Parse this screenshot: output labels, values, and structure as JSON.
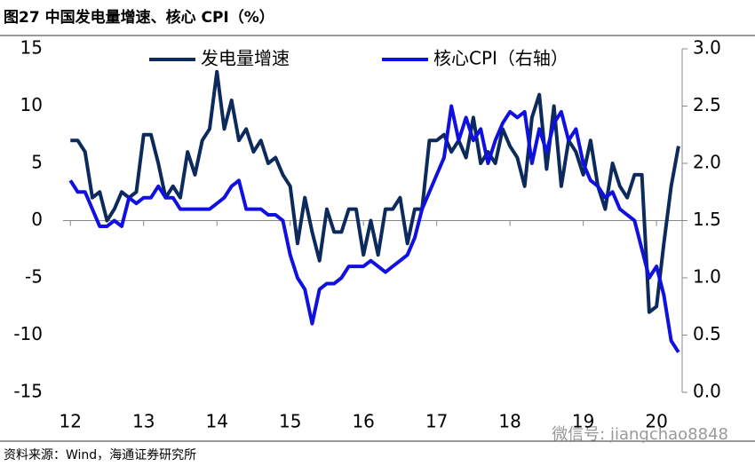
{
  "chart_data": {
    "type": "line",
    "title": "图27 中国发电量增速、核心 CPI（%）",
    "source": "资料来源：Wind，海通证券研究所",
    "watermark": "微信号: jiangchao8848",
    "x": [
      12.0,
      12.1,
      12.2,
      12.3,
      12.4,
      12.5,
      12.6,
      12.7,
      12.8,
      12.9,
      13.0,
      13.1,
      13.2,
      13.3,
      13.4,
      13.5,
      13.6,
      13.7,
      13.8,
      13.9,
      14.0,
      14.1,
      14.2,
      14.3,
      14.4,
      14.5,
      14.6,
      14.7,
      14.8,
      14.9,
      15.0,
      15.1,
      15.2,
      15.3,
      15.4,
      15.5,
      15.6,
      15.7,
      15.8,
      15.9,
      16.0,
      16.1,
      16.2,
      16.3,
      16.4,
      16.5,
      16.6,
      16.7,
      16.8,
      16.9,
      17.0,
      17.1,
      17.2,
      17.3,
      17.4,
      17.5,
      17.6,
      17.7,
      17.8,
      17.9,
      18.0,
      18.1,
      18.2,
      18.3,
      18.4,
      18.5,
      18.6,
      18.7,
      18.8,
      18.9,
      19.0,
      19.1,
      19.2,
      19.3,
      19.4,
      19.5,
      19.6,
      19.7,
      19.8,
      19.9,
      20.0,
      20.1,
      20.2,
      20.3
    ],
    "series": [
      {
        "name": "发电量增速",
        "color": "#0c2a5c",
        "values": [
          7,
          7,
          6,
          2,
          2.5,
          0,
          1,
          2.5,
          2,
          2.5,
          7.5,
          7.5,
          5,
          2,
          3,
          2,
          6,
          4,
          7,
          8,
          13,
          8,
          10.5,
          7,
          8,
          6,
          7,
          5,
          5.5,
          4,
          3,
          -2,
          2,
          -1,
          -3.5,
          1,
          -1,
          -1,
          1,
          1,
          -3,
          0,
          -3,
          1,
          1,
          2,
          -2,
          1,
          1,
          7,
          7,
          7.5,
          6,
          7,
          5.5,
          9,
          5,
          6,
          5,
          8,
          6.5,
          5.5,
          3,
          9,
          11,
          4.5,
          10,
          3,
          7,
          6,
          4,
          7,
          3,
          1,
          5,
          3,
          2,
          4,
          4,
          -8,
          -7.5,
          -2,
          3,
          6.5
        ]
      },
      {
        "name": "核心CPI（右轴）",
        "color": "#1010e0",
        "axis": "y2",
        "values": [
          1.85,
          1.75,
          1.75,
          1.6,
          1.45,
          1.45,
          1.5,
          1.45,
          1.7,
          1.65,
          1.7,
          1.7,
          1.8,
          1.7,
          1.7,
          1.6,
          1.6,
          1.6,
          1.6,
          1.6,
          1.65,
          1.7,
          1.8,
          1.85,
          1.6,
          1.6,
          1.6,
          1.55,
          1.55,
          1.5,
          1.2,
          1.0,
          0.9,
          0.6,
          0.9,
          0.95,
          0.95,
          1.0,
          1.1,
          1.1,
          1.1,
          1.15,
          1.1,
          1.05,
          1.1,
          1.15,
          1.2,
          1.35,
          1.6,
          1.75,
          1.9,
          2.05,
          2.5,
          2.2,
          2.4,
          2.2,
          2.3,
          2.0,
          2.2,
          2.35,
          2.45,
          2.4,
          2.45,
          2.0,
          2.3,
          2.1,
          2.35,
          2.45,
          2.2,
          2.3,
          2.0,
          1.85,
          1.8,
          1.7,
          1.75,
          1.6,
          1.55,
          1.5,
          1.25,
          1.0,
          1.1,
          0.85,
          0.45,
          0.35
        ]
      }
    ],
    "xlim": [
      11.9,
      20.35
    ],
    "xticks": [
      12,
      13,
      14,
      15,
      16,
      17,
      18,
      19,
      20
    ],
    "ylim": [
      -15,
      15
    ],
    "yticks": [
      -15,
      -10,
      -5,
      0,
      5,
      10,
      15
    ],
    "y2lim": [
      0,
      3
    ],
    "y2ticks": [
      {
        "value": 0,
        "label": "0.0"
      },
      {
        "value": 0.5,
        "label": "0.5"
      },
      {
        "value": 1,
        "label": "1.0"
      },
      {
        "value": 1.5,
        "label": "1.5"
      },
      {
        "value": 2,
        "label": "2.0"
      },
      {
        "value": 2.5,
        "label": "2.5"
      },
      {
        "value": 3,
        "label": "3.0"
      }
    ]
  }
}
